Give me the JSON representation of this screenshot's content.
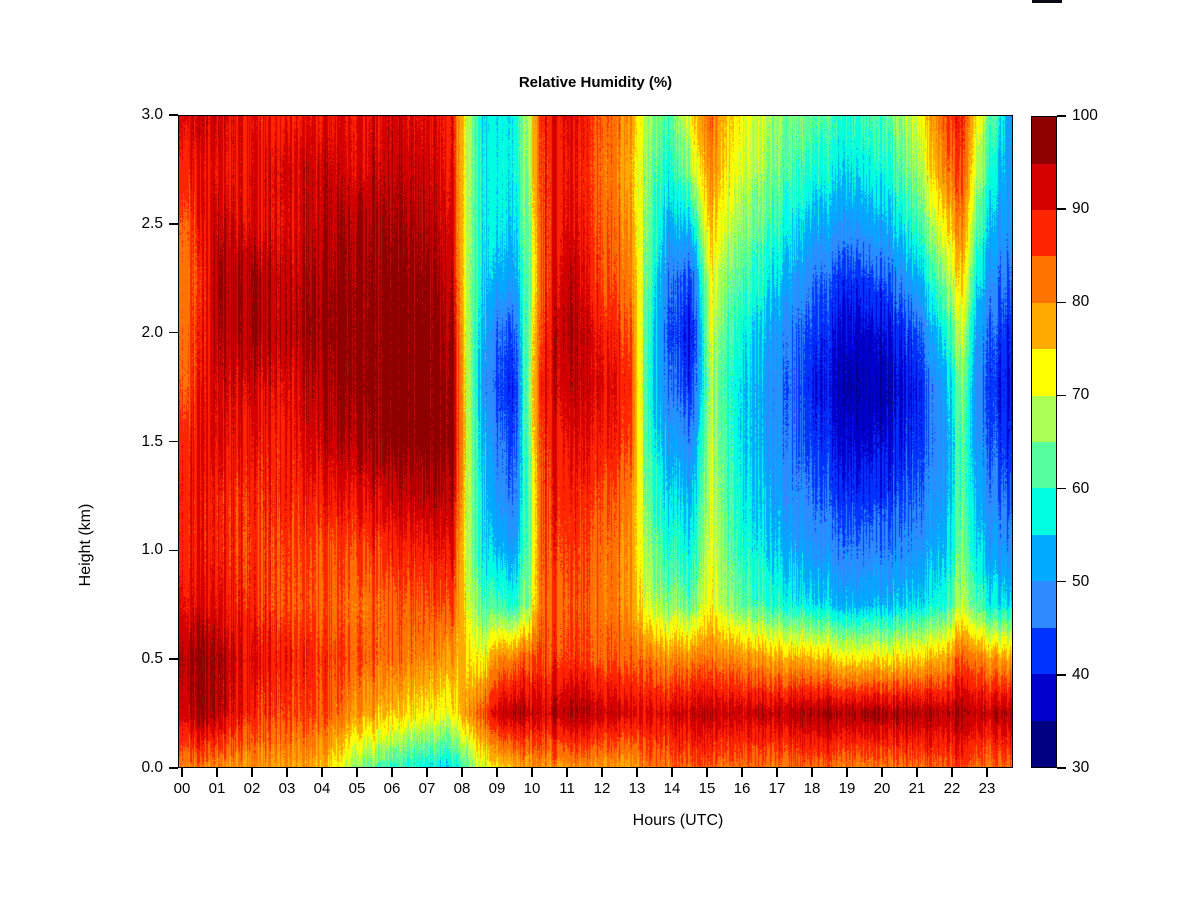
{
  "page": {
    "background": "#FFFFFF"
  },
  "artifact_bar": {
    "color": "#0A0A14"
  },
  "chart_data": {
    "type": "heatmap",
    "title": "Relative Humidity (%)",
    "xlabel": "Hours (UTC)",
    "ylabel": "Height (km)",
    "x_ticks": [
      "00",
      "01",
      "02",
      "03",
      "04",
      "05",
      "06",
      "07",
      "08",
      "09",
      "10",
      "11",
      "12",
      "13",
      "14",
      "15",
      "16",
      "17",
      "18",
      "19",
      "20",
      "21",
      "22",
      "23"
    ],
    "y_ticks": [
      "0.0",
      "0.5",
      "1.0",
      "1.5",
      "2.0",
      "2.5",
      "3.0"
    ],
    "y_tick_values": [
      0,
      0.5,
      1,
      1.5,
      2,
      2.5,
      3
    ],
    "x_range": [
      0,
      24
    ],
    "y_range": [
      0,
      3
    ],
    "value_range": [
      30,
      100
    ],
    "grid_lines": false,
    "colorbar": {
      "position": "right",
      "tick_labels": [
        "30",
        "40",
        "50",
        "60",
        "70",
        "80",
        "90",
        "100"
      ],
      "tick_values": [
        30,
        40,
        50,
        60,
        70,
        80,
        90,
        100
      ],
      "level_step": 5,
      "colors": [
        "#000080",
        "#0000CD",
        "#0033FF",
        "#2E8BFF",
        "#00AAFF",
        "#00FFE0",
        "#55FF9E",
        "#AAFF55",
        "#FFFF00",
        "#FFAA00",
        "#FF7400",
        "#FF2500",
        "#D40000",
        "#8E0000"
      ]
    },
    "grid": {
      "times": [
        0,
        0.5,
        1,
        2,
        3,
        4,
        5,
        6,
        7,
        7.7,
        8.1,
        8.5,
        9,
        9.5,
        9.9,
        10.3,
        11,
        12,
        12.8,
        13.3,
        14,
        14.6,
        15.1,
        15.6,
        16,
        17,
        18,
        19,
        20,
        21,
        21.8,
        22.3,
        22.7,
        23.3,
        24
      ],
      "heights": [
        0,
        0.25,
        0.5,
        0.75,
        1,
        1.25,
        1.5,
        1.75,
        2,
        2.25,
        2.5,
        2.75,
        3
      ],
      "values": [
        [
          82,
          93,
          96,
          91,
          89,
          90,
          88,
          85,
          84,
          83,
          85,
          89,
          92
        ],
        [
          81,
          96,
          97,
          91,
          89,
          89,
          90,
          88,
          87,
          86,
          88,
          90,
          92
        ],
        [
          80,
          94,
          95,
          90,
          88,
          88,
          91,
          92,
          94,
          95,
          93,
          90,
          92
        ],
        [
          80,
          88,
          91,
          88,
          87,
          88,
          90,
          93,
          96,
          96,
          92,
          91,
          90
        ],
        [
          79,
          86,
          89,
          85,
          86,
          88,
          89,
          91,
          94,
          93,
          91,
          92,
          89
        ],
        [
          77,
          85,
          87,
          84,
          85,
          89,
          93,
          95,
          97,
          96,
          94,
          93,
          90
        ],
        [
          66,
          80,
          85,
          83,
          86,
          91,
          96,
          98,
          98,
          97,
          96,
          92,
          91
        ],
        [
          60,
          76,
          83,
          84,
          88,
          93,
          98,
          98,
          98,
          98,
          96,
          94,
          92
        ],
        [
          57,
          73,
          81,
          85,
          89,
          95,
          98,
          98,
          98,
          97,
          95,
          93,
          91
        ],
        [
          56,
          72,
          79,
          86,
          91,
          95,
          98,
          97,
          96,
          94,
          92,
          90,
          89
        ],
        [
          62,
          79,
          76,
          73,
          71,
          72,
          73,
          72,
          71,
          70,
          70,
          71,
          72
        ],
        [
          70,
          84,
          72,
          63,
          58,
          57,
          55,
          53,
          55,
          57,
          58,
          58,
          57
        ],
        [
          74,
          92,
          80,
          61,
          53,
          49,
          46,
          43,
          45,
          52,
          56,
          57,
          56
        ],
        [
          77,
          95,
          82,
          59,
          51,
          46,
          43,
          41,
          44,
          51,
          55,
          57,
          57
        ],
        [
          79,
          94,
          85,
          67,
          65,
          64,
          66,
          67,
          66,
          65,
          66,
          68,
          70
        ],
        [
          80,
          92,
          86,
          84,
          86,
          87,
          88,
          90,
          88,
          86,
          87,
          88,
          89
        ],
        [
          79,
          95,
          86,
          84,
          86,
          88,
          90,
          93,
          95,
          94,
          91,
          90,
          91
        ],
        [
          80,
          94,
          85,
          83,
          84,
          86,
          90,
          92,
          90,
          86,
          85,
          84,
          85
        ],
        [
          78,
          92,
          84,
          80,
          80,
          82,
          86,
          88,
          85,
          82,
          80,
          78,
          80
        ],
        [
          82,
          91,
          82,
          69,
          65,
          62,
          60,
          58,
          60,
          62,
          63,
          64,
          66
        ],
        [
          83,
          92,
          80,
          65,
          59,
          55,
          50,
          45,
          42,
          45,
          52,
          58,
          62
        ],
        [
          84,
          93,
          81,
          63,
          57,
          53,
          48,
          42,
          40,
          44,
          56,
          68,
          74
        ],
        [
          85,
          95,
          83,
          74,
          72,
          71,
          70,
          69,
          71,
          74,
          78,
          82,
          85
        ],
        [
          83,
          94,
          82,
          67,
          64,
          62,
          61,
          60,
          62,
          65,
          70,
          74,
          76
        ],
        [
          83,
          93,
          80,
          63,
          59,
          57,
          55,
          55,
          58,
          62,
          66,
          70,
          72
        ],
        [
          82,
          94,
          78,
          59,
          54,
          51,
          49,
          48,
          50,
          55,
          60,
          64,
          66
        ],
        [
          83,
          95,
          76,
          55,
          49,
          45,
          42,
          40,
          42,
          46,
          52,
          58,
          62
        ],
        [
          82,
          96,
          74,
          53,
          47,
          42,
          38,
          36,
          38,
          42,
          50,
          56,
          60
        ],
        [
          82,
          96,
          74,
          53,
          47,
          42,
          38,
          36,
          38,
          44,
          52,
          58,
          62
        ],
        [
          83,
          95,
          75,
          55,
          49,
          45,
          42,
          40,
          44,
          52,
          60,
          66,
          70
        ],
        [
          84,
          94,
          78,
          59,
          54,
          51,
          50,
          52,
          58,
          66,
          74,
          82,
          86
        ],
        [
          86,
          96,
          85,
          69,
          65,
          63,
          63,
          65,
          70,
          76,
          82,
          86,
          88
        ],
        [
          84,
          95,
          83,
          63,
          57,
          54,
          51,
          50,
          52,
          58,
          64,
          70,
          74
        ],
        [
          82,
          94,
          78,
          55,
          49,
          45,
          42,
          40,
          42,
          46,
          50,
          54,
          58
        ],
        [
          82,
          93,
          76,
          53,
          45,
          41,
          38,
          36,
          38,
          42,
          46,
          44,
          40
        ]
      ]
    }
  }
}
